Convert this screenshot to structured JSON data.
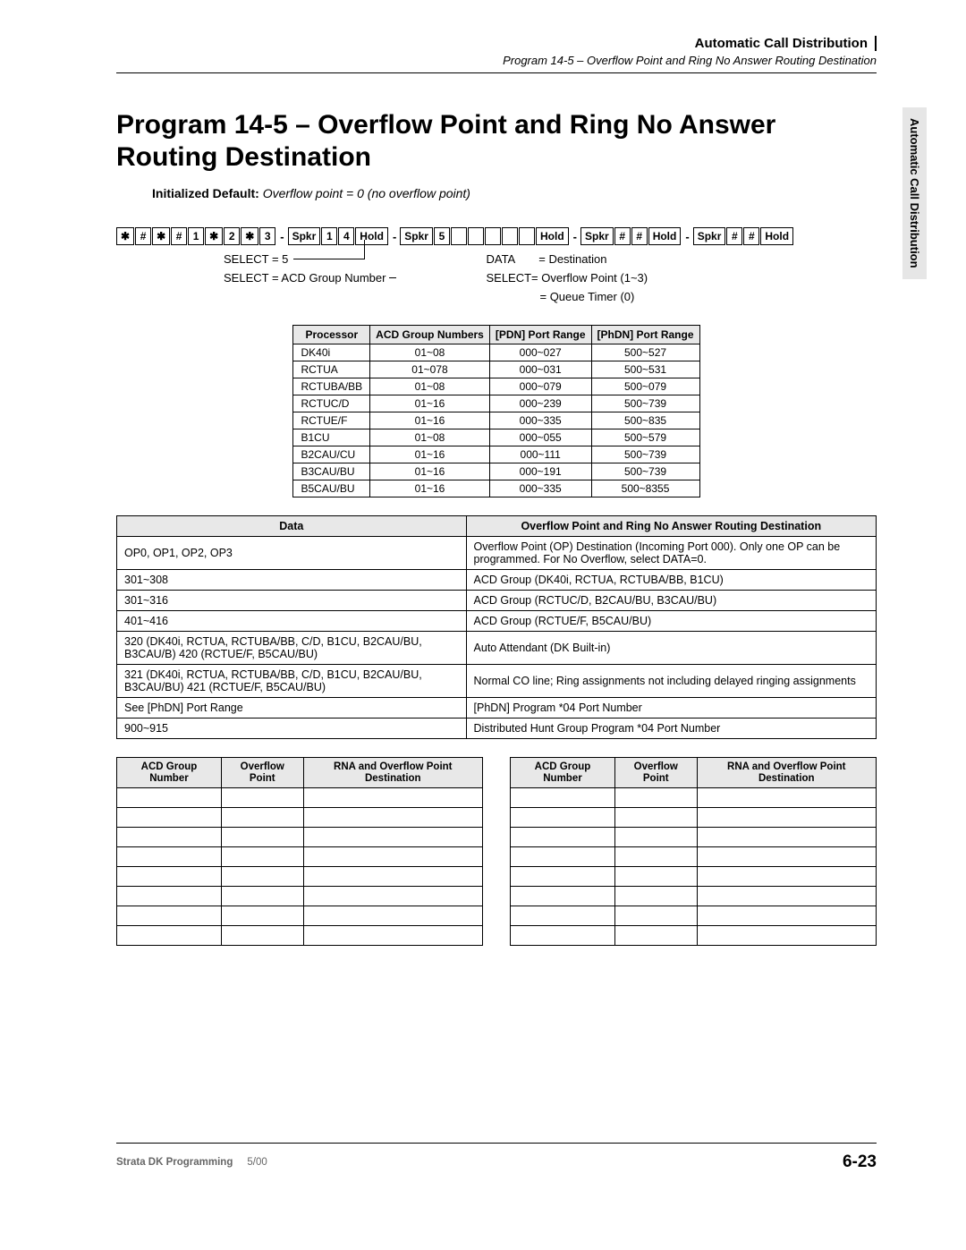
{
  "header": {
    "section": "Automatic Call Distribution",
    "subtitle": "Program 14-5 – Overflow Point and Ring No Answer Routing Destination"
  },
  "side_tab": "Automatic Call Distribution",
  "title": "Program 14-5 – Overflow Point and Ring No Answer Routing Destination",
  "init_default": {
    "label": "Initialized Default:",
    "value": "Overflow point = 0 (no overflow point)"
  },
  "keyseq": {
    "keys1": [
      "✱",
      "#",
      "✱",
      "#",
      "1",
      "✱",
      "2",
      "✱",
      "3"
    ],
    "spkr1": "Spkr",
    "k14a": "1",
    "k14b": "4",
    "hold1": "Hold",
    "spkr2": "Spkr",
    "k5": "5",
    "hold2": "Hold",
    "spkr3": "Spkr",
    "h1": "#",
    "h2": "#",
    "hold3": "Hold",
    "spkr4": "Spkr",
    "h3": "#",
    "h4": "#",
    "hold4": "Hold"
  },
  "seq_notes": {
    "l1": "SELECT  =  5",
    "l2": "SELECT  =  ACD Group Number",
    "r1a": "DATA",
    "r1b": "= Destination",
    "r2": "SELECT= Overflow Point (1~3)",
    "r3": "= Queue Timer (0)"
  },
  "proc_table": {
    "headers": [
      "Processor",
      "ACD Group Numbers",
      "[PDN] Port Range",
      "[PhDN] Port Range"
    ],
    "rows": [
      [
        "DK40i",
        "01~08",
        "000~027",
        "500~527"
      ],
      [
        "RCTUA",
        "01~078",
        "000~031",
        "500~531"
      ],
      [
        "RCTUBA/BB",
        "01~08",
        "000~079",
        "500~079"
      ],
      [
        "RCTUC/D",
        "01~16",
        "000~239",
        "500~739"
      ],
      [
        "RCTUE/F",
        "01~16",
        "000~335",
        "500~835"
      ],
      [
        "B1CU",
        "01~08",
        "000~055",
        "500~579"
      ],
      [
        "B2CAU/CU",
        "01~16",
        "000~111",
        "500~739"
      ],
      [
        "B3CAU/BU",
        "01~16",
        "000~191",
        "500~739"
      ],
      [
        "B5CAU/BU",
        "01~16",
        "000~335",
        "500~8355"
      ]
    ]
  },
  "data_table": {
    "headers": [
      "Data",
      "Overflow Point and Ring No Answer Routing Destination"
    ],
    "rows": [
      [
        "OP0, OP1, OP2, OP3",
        "Overflow Point (OP) Destination (Incoming Port 000). Only one OP can be programmed. For No Overflow, select DATA=0."
      ],
      [
        "301~308",
        "ACD Group (DK40i, RCTUA, RCTUBA/BB, B1CU)"
      ],
      [
        "301~316",
        "ACD Group (RCTUC/D, B2CAU/BU, B3CAU/BU)"
      ],
      [
        "401~416",
        "ACD Group (RCTUE/F, B5CAU/BU)"
      ],
      [
        "320 (DK40i, RCTUA, RCTUBA/BB, C/D, B1CU, B2CAU/BU, B3CAU/B) 420 (RCTUE/F, B5CAU/BU)",
        "Auto Attendant (DK Built-in)"
      ],
      [
        "321 (DK40i, RCTUA, RCTUBA/BB, C/D, B1CU, B2CAU/BU, B3CAU/BU) 421 (RCTUE/F, B5CAU/BU)",
        "Normal CO line; Ring assignments not including delayed ringing assignments"
      ],
      [
        "See [PhDN] Port Range",
        "[PhDN] Program *04 Port Number"
      ],
      [
        "900~915",
        "Distributed Hunt Group Program *04 Port Number"
      ]
    ]
  },
  "blank_table": {
    "headers": [
      "ACD Group Number",
      "Overflow Point",
      "RNA and Overflow Point Destination"
    ],
    "row_count": 8
  },
  "footer": {
    "product": "Strata DK Programming",
    "date": "5/00",
    "page": "6-23"
  }
}
